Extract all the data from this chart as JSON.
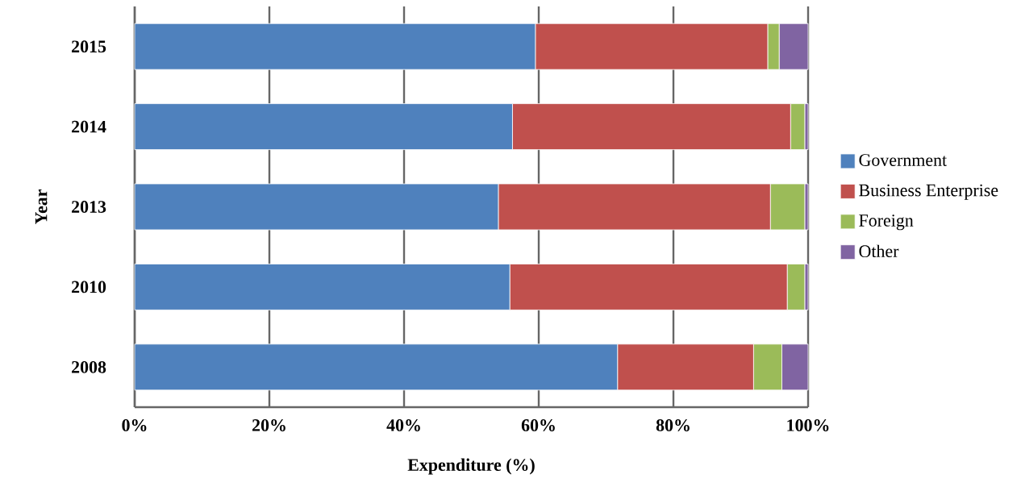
{
  "chart_data": {
    "type": "bar",
    "orientation": "horizontal",
    "stacked": true,
    "xlabel": "Expenditure (%)",
    "ylabel": "Year",
    "categories": [
      "2015",
      "2014",
      "2013",
      "2010",
      "2008"
    ],
    "series": [
      {
        "name": "Government",
        "color": "#4f81bd",
        "values": [
          59.5,
          56.1,
          54.0,
          55.7,
          71.7
        ]
      },
      {
        "name": "Business Enterprise",
        "color": "#c0504d",
        "values": [
          34.5,
          41.3,
          40.4,
          41.2,
          20.2
        ]
      },
      {
        "name": "Foreign",
        "color": "#9bbb59",
        "values": [
          1.7,
          2.1,
          5.1,
          2.6,
          4.2
        ]
      },
      {
        "name": "Other",
        "color": "#8064a2",
        "values": [
          4.3,
          0.5,
          0.5,
          0.5,
          3.9
        ]
      }
    ],
    "xlim": [
      0,
      100
    ],
    "xticks": [
      {
        "value": 0,
        "label": "0%"
      },
      {
        "value": 20,
        "label": "20%"
      },
      {
        "value": 40,
        "label": "40%"
      },
      {
        "value": 60,
        "label": "60%"
      },
      {
        "value": 80,
        "label": "80%"
      },
      {
        "value": 100,
        "label": "100%"
      }
    ],
    "grid": "x",
    "legend": "right"
  }
}
